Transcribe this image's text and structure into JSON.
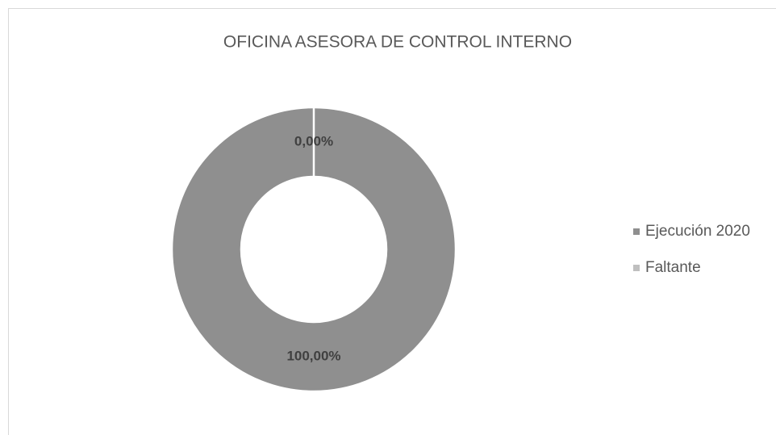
{
  "chart_data": {
    "type": "donut",
    "title": "OFICINA ASESORA DE CONTROL INTERNO",
    "categories": [
      "Ejecución 2020",
      "Faltante"
    ],
    "values": [
      100,
      0
    ],
    "value_labels": [
      "100,00%",
      "0,00%"
    ],
    "colors": [
      "#8f8f8f",
      "#bfbfbf"
    ],
    "legend": "right"
  }
}
